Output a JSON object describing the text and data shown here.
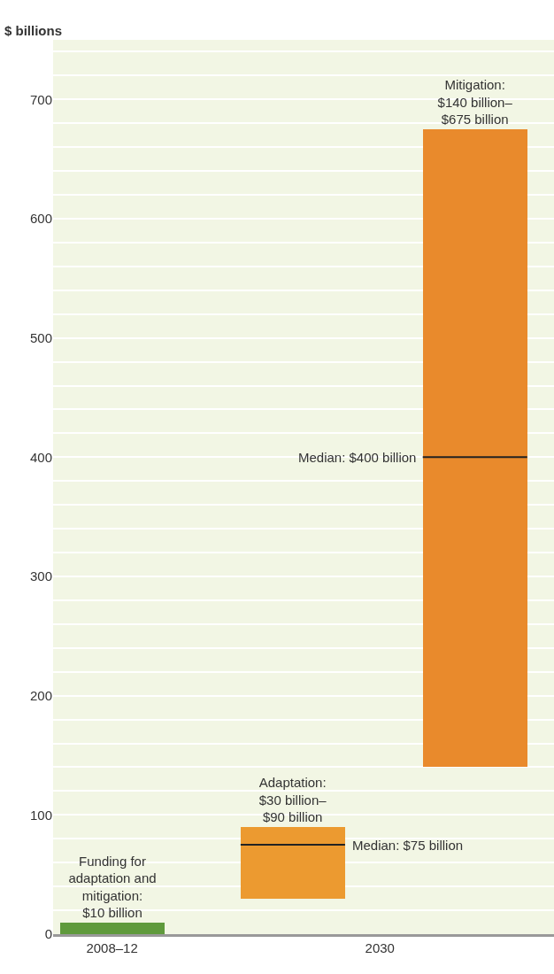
{
  "chart_data": {
    "type": "bar",
    "ylabel": "$ billions",
    "categories": [
      "2008–12",
      "2030"
    ],
    "series": [
      {
        "color": "#5f9a3c",
        "values": [
          10,
          null
        ],
        "base": [
          0,
          null
        ],
        "value_labels": [
          "Funding for\nadaptation and\nmitigation:\n$10 billion",
          null
        ]
      },
      {
        "color": "#ec9a30",
        "values": [
          null,
          60
        ],
        "base": [
          null,
          30
        ],
        "value_labels": [
          null,
          "Adaptation:\n$30 billion–\n$90 billion"
        ]
      },
      {
        "color": "#e98a2c",
        "values": [
          null,
          535
        ],
        "base": [
          null,
          140
        ],
        "value_labels": [
          null,
          "Mitigation:\n$140 billion–\n$675 billion"
        ]
      }
    ],
    "ref_lines": [
      {
        "axis": "y",
        "value": 400,
        "label": "Median: $400 billion",
        "color": "#222222"
      },
      {
        "axis": "y",
        "value": 75,
        "label": "Median: $75 billion",
        "color": "#222222"
      }
    ],
    "ylim": [
      0,
      750
    ],
    "yticks": [
      0,
      {
        "value": 20,
        "label": null
      },
      {
        "value": 40,
        "label": null
      },
      {
        "value": 60,
        "label": null
      },
      {
        "value": 80,
        "label": null
      },
      100,
      {
        "value": 120,
        "label": null
      },
      {
        "value": 140,
        "label": null
      },
      {
        "value": 160,
        "label": null
      },
      {
        "value": 180,
        "label": null
      },
      200,
      {
        "value": 220,
        "label": null
      },
      {
        "value": 240,
        "label": null
      },
      {
        "value": 260,
        "label": null
      },
      {
        "value": 280,
        "label": null
      },
      300,
      {
        "value": 320,
        "label": null
      },
      {
        "value": 340,
        "label": null
      },
      {
        "value": 360,
        "label": null
      },
      {
        "value": 380,
        "label": null
      },
      400,
      {
        "value": 420,
        "label": null
      },
      {
        "value": 440,
        "label": null
      },
      {
        "value": 460,
        "label": null
      },
      {
        "value": 480,
        "label": null
      },
      500,
      {
        "value": 520,
        "label": null
      },
      {
        "value": 540,
        "label": null
      },
      {
        "value": 560,
        "label": null
      },
      {
        "value": 580,
        "label": null
      },
      600,
      {
        "value": 620,
        "label": null
      },
      {
        "value": 640,
        "label": null
      },
      {
        "value": 660,
        "label": null
      },
      {
        "value": 680,
        "label": null
      },
      700,
      {
        "value": 720,
        "label": null
      },
      {
        "value": 740,
        "label": null
      }
    ],
    "grid": "y"
  }
}
